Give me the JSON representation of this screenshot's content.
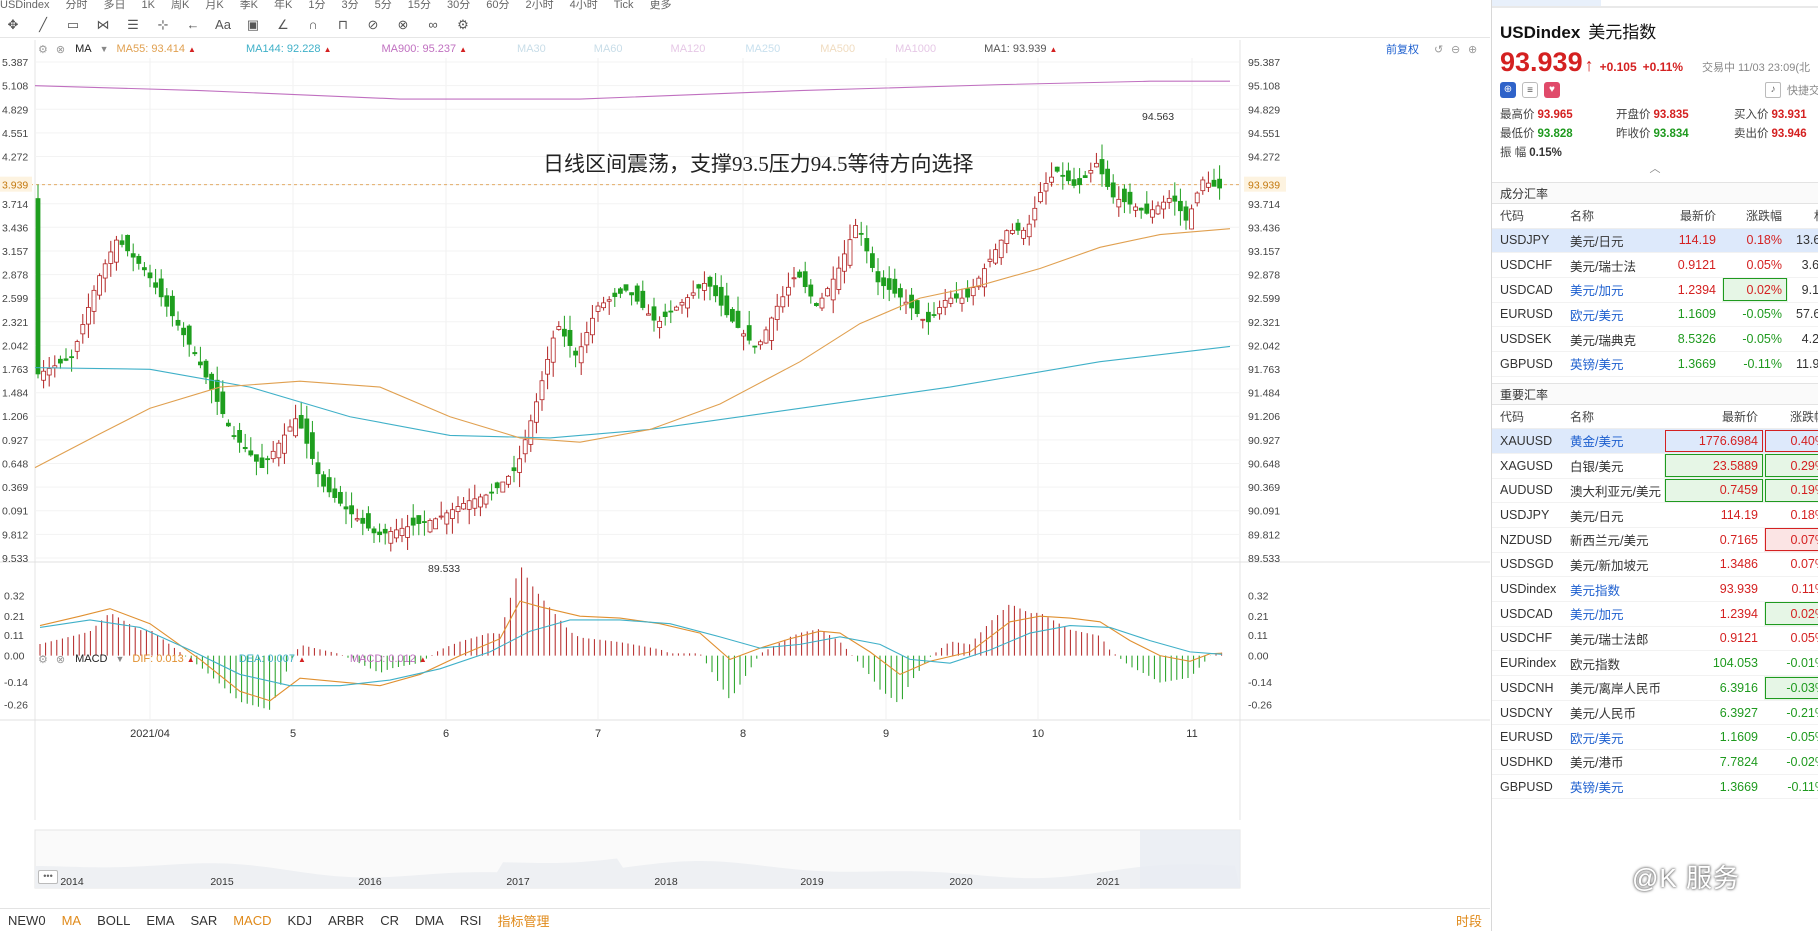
{
  "topbar": {
    "items": [
      "USDindex",
      "分时",
      "多日",
      "1K",
      "周K",
      "月K",
      "季K",
      "年K",
      "1分",
      "3分",
      "5分",
      "15分",
      "30分",
      "60分",
      "2小时",
      "4小时",
      "Tick",
      "更多"
    ]
  },
  "toolbar": {
    "icons": [
      "crosshair-icon",
      "line-draw-icon",
      "rect-draw-icon",
      "pattern-icon",
      "fib-icon",
      "measure-icon",
      "back-icon",
      "text-icon",
      "comment-icon",
      "pen-icon",
      "magnet-icon",
      "lock-icon",
      "eraser-icon",
      "delete-icon",
      "link-icon",
      "settings-icon"
    ],
    "text_tool": "Aa"
  },
  "main_legend": {
    "indicator": "MA",
    "ma55": "MA55: 93.414",
    "ma144": "MA144: 92.228",
    "ma900": "MA900: 95.237",
    "ma30": "MA30",
    "ma60": "MA60",
    "ma120": "MA120",
    "ma250": "MA250",
    "ma500": "MA500",
    "ma1000": "MA1000",
    "ma1": "MA1: 93.939",
    "adjust": "前复权"
  },
  "annotation": "日线区间震荡，支撑93.5压力94.5等待方向选择",
  "price_axis_left": [
    "5.387",
    "5.108",
    "4.829",
    "4.551",
    "4.272",
    "3.939",
    "3.714",
    "3.436",
    "3.157",
    "2.878",
    "2.599",
    "2.321",
    "2.042",
    "1.763",
    "1.484",
    "1.206",
    "0.927",
    "0.648",
    "0.369",
    "0.091",
    "9.812",
    "9.533"
  ],
  "price_axis_right": [
    "95.387",
    "95.108",
    "94.829",
    "94.551",
    "94.272",
    "93.939",
    "93.714",
    "93.436",
    "93.157",
    "92.878",
    "92.599",
    "92.321",
    "92.042",
    "91.763",
    "91.484",
    "91.206",
    "90.927",
    "90.648",
    "90.369",
    "90.091",
    "89.812",
    "89.533"
  ],
  "high_label": "94.563",
  "low_label": "89.533",
  "macd_legend": {
    "indicator": "MACD",
    "dif": "DIF: 0.013",
    "dea": "DEA: 0.007",
    "macd": "MACD: 0.012"
  },
  "macd_axis": [
    "0.32",
    "0.21",
    "0.11",
    "0.00",
    "-0.14",
    "-0.26"
  ],
  "month_labels": [
    "2021/04",
    "5",
    "6",
    "7",
    "8",
    "9",
    "10",
    "11"
  ],
  "year_labels": [
    "2014",
    "2015",
    "2016",
    "2017",
    "2018",
    "2019",
    "2020",
    "2021"
  ],
  "bottombar": {
    "items": [
      "NEW0",
      "MA",
      "BOLL",
      "EMA",
      "SAR",
      "MACD",
      "KDJ",
      "ARBR",
      "CR",
      "DMA",
      "RSI",
      "指标管理"
    ],
    "right": "时段"
  },
  "quote": {
    "symbol": "USDindex",
    "name": "美元指数",
    "price": "93.939",
    "change": "+0.105",
    "pct": "+0.11%",
    "status": "交易中 11/03 23:09(北",
    "quick": "快捷交",
    "stats": [
      {
        "label": "最高价",
        "value": "93.965"
      },
      {
        "label": "开盘价",
        "value": "93.835"
      },
      {
        "label": "买入价",
        "value": "93.931"
      },
      {
        "label": "最低价",
        "value": "93.828"
      },
      {
        "label": "昨收价",
        "value": "93.834"
      },
      {
        "label": "卖出价",
        "value": "93.946"
      },
      {
        "label": "振  幅",
        "value": "0.15%"
      }
    ]
  },
  "components": {
    "title": "成分汇率",
    "headers": [
      "代码",
      "名称",
      "最新价",
      "涨跌幅",
      "权"
    ],
    "rows": [
      {
        "code": "USDJPY",
        "name": "美元/日元",
        "price": "114.19",
        "pct": "0.18%",
        "w": "13.60"
      },
      {
        "code": "USDCHF",
        "name": "美元/瑞士法",
        "price": "0.9121",
        "pct": "0.05%",
        "w": "3.60"
      },
      {
        "code": "USDCAD",
        "name": "美元/加元",
        "price": "1.2394",
        "pct": "0.02%",
        "w": "9.10"
      },
      {
        "code": "EURUSD",
        "name": "欧元/美元",
        "price": "1.1609",
        "pct": "-0.05%",
        "w": "57.60"
      },
      {
        "code": "USDSEK",
        "name": "美元/瑞典克",
        "price": "8.5326",
        "pct": "-0.05%",
        "w": "4.20"
      },
      {
        "code": "GBPUSD",
        "name": "英镑/美元",
        "price": "1.3669",
        "pct": "-0.11%",
        "w": "11.90"
      }
    ]
  },
  "major": {
    "title": "重要汇率",
    "headers": [
      "代码",
      "名称",
      "最新价",
      "涨跌幅"
    ],
    "rows": [
      {
        "code": "XAUUSD",
        "name": "黄金/美元",
        "price": "1776.6984",
        "pct": "0.40%"
      },
      {
        "code": "XAGUSD",
        "name": "白银/美元",
        "price": "23.5889",
        "pct": "0.29%"
      },
      {
        "code": "AUDUSD",
        "name": "澳大利亚元/美元",
        "price": "0.7459",
        "pct": "0.19%"
      },
      {
        "code": "USDJPY",
        "name": "美元/日元",
        "price": "114.19",
        "pct": "0.18%"
      },
      {
        "code": "NZDUSD",
        "name": "新西兰元/美元",
        "price": "0.7165",
        "pct": "0.07%"
      },
      {
        "code": "USDSGD",
        "name": "美元/新加坡元",
        "price": "1.3486",
        "pct": "0.07%"
      },
      {
        "code": "USDindex",
        "name": "美元指数",
        "price": "93.939",
        "pct": "0.11%"
      },
      {
        "code": "USDCAD",
        "name": "美元/加元",
        "price": "1.2394",
        "pct": "0.02%"
      },
      {
        "code": "USDCHF",
        "name": "美元/瑞士法郎",
        "price": "0.9121",
        "pct": "0.05%"
      },
      {
        "code": "EURindex",
        "name": "欧元指数",
        "price": "104.053",
        "pct": "-0.01%"
      },
      {
        "code": "USDCNH",
        "name": "美元/离岸人民币",
        "price": "6.3916",
        "pct": "-0.03%"
      },
      {
        "code": "USDCNY",
        "name": "美元/人民币",
        "price": "6.3927",
        "pct": "-0.21%"
      },
      {
        "code": "EURUSD",
        "name": "欧元/美元",
        "price": "1.1609",
        "pct": "-0.05%"
      },
      {
        "code": "USDHKD",
        "name": "美元/港币",
        "price": "7.7824",
        "pct": "-0.02%"
      },
      {
        "code": "GBPUSD",
        "name": "英镑/美元",
        "price": "1.3669",
        "pct": "-0.11%"
      }
    ]
  },
  "watermark": "@K 服务",
  "colors": {
    "up": "#b22222",
    "down": "#1e9e1e",
    "ma55": "#e0a050",
    "ma144": "#3fb0c8",
    "ma900": "#c070c0",
    "dif": "#e09030",
    "dea": "#3fb0c8"
  }
}
